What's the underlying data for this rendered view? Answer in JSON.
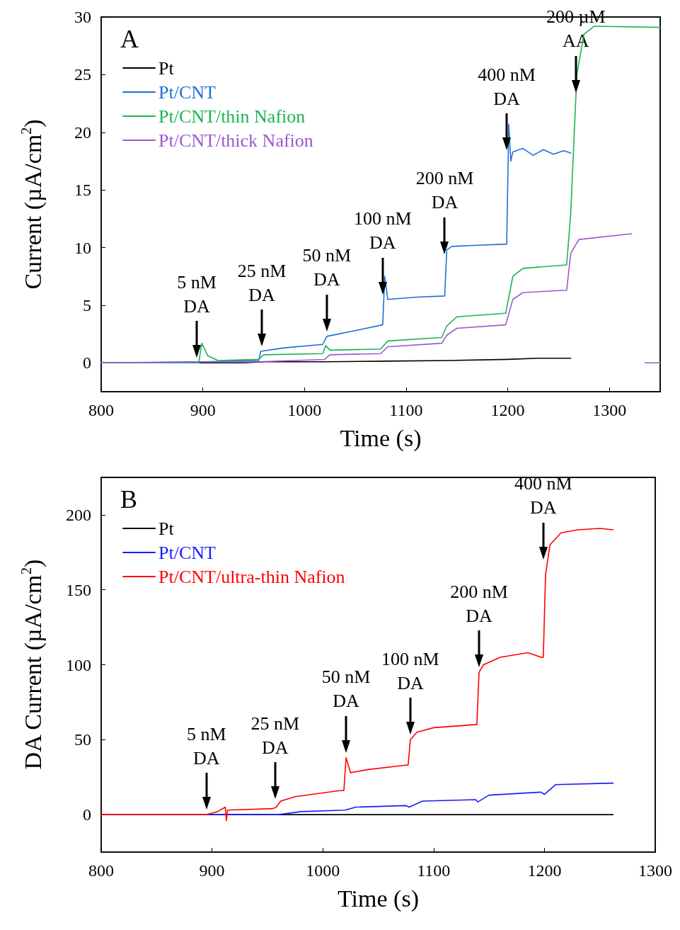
{
  "chart_data": [
    {
      "type": "line",
      "title": "A",
      "xlabel": "Time (s)",
      "ylabel": "Current (µA/cm$^{2}$)",
      "xlim": [
        800,
        1350
      ],
      "xticks": [
        800,
        900,
        1000,
        1100,
        1200,
        1300
      ],
      "ylim": [
        -2.5,
        30
      ],
      "yticks": [
        0,
        5,
        10,
        15,
        20,
        25,
        30
      ],
      "grid": false,
      "legend": "top left",
      "marker": "none",
      "series": [
        {
          "name": "Pt",
          "color": "#000000",
          "x": [
            800,
            900,
            940,
            960,
            1020,
            1080,
            1140,
            1200,
            1230,
            1262
          ],
          "values": [
            0,
            0,
            0,
            0.1,
            0.1,
            0.15,
            0.2,
            0.3,
            0.4,
            0.4
          ]
        },
        {
          "name": "Pt/CNT",
          "color": "#1f6fd6",
          "x": [
            800,
            900,
            955,
            957,
            980,
            1018,
            1022,
            1050,
            1077,
            1079,
            1082,
            1110,
            1138,
            1140,
            1145,
            1170,
            1199,
            1201,
            1203,
            1205,
            1215,
            1225,
            1235,
            1245,
            1255,
            1262
          ],
          "values": [
            0,
            0.1,
            0.2,
            1.0,
            1.3,
            1.6,
            2.3,
            2.8,
            3.3,
            7.5,
            5.5,
            5.7,
            5.8,
            9.8,
            10.1,
            10.2,
            10.3,
            20.7,
            17.5,
            18.3,
            18.6,
            18.0,
            18.5,
            18.1,
            18.4,
            18.2
          ]
        },
        {
          "name": "Pt/CNT/thin Nafion",
          "color": "#1db354",
          "x": [
            800,
            896,
            899,
            905,
            915,
            955,
            960,
            1018,
            1021,
            1025,
            1075,
            1082,
            1135,
            1140,
            1150,
            1198,
            1205,
            1215,
            1258,
            1262,
            1268,
            1275,
            1285,
            1350
          ],
          "values": [
            0,
            0,
            1.7,
            0.6,
            0.2,
            0.3,
            0.7,
            0.8,
            1.5,
            1.1,
            1.2,
            1.9,
            2.2,
            3.2,
            4.0,
            4.3,
            7.5,
            8.2,
            8.5,
            13,
            25,
            28.5,
            29.2,
            29.1
          ]
        },
        {
          "name": "Pt/CNT/thick Nafion",
          "color": "#9b59d0",
          "x": [
            800,
            955,
            1020,
            1025,
            1075,
            1082,
            1135,
            1140,
            1150,
            1198,
            1205,
            1215,
            1258,
            1262,
            1270,
            1322,
            1330,
            1335,
            1350
          ],
          "values": [
            0,
            0.1,
            0.3,
            0.7,
            0.8,
            1.4,
            1.7,
            2.4,
            3.0,
            3.3,
            5.5,
            6.1,
            6.3,
            9.5,
            10.7,
            11.2,
            null,
            0,
            0
          ]
        }
      ],
      "annotations": [
        {
          "text": "5 nM\nDA",
          "x": 894,
          "y": 0
        },
        {
          "text": "25 nM\nDA",
          "x": 958,
          "y": 1.0
        },
        {
          "text": "50 nM\nDA",
          "x": 1022,
          "y": 2.3
        },
        {
          "text": "100 nM\nDA",
          "x": 1077,
          "y": 5.5
        },
        {
          "text": "200 nM\nDA",
          "x": 1138,
          "y": 9
        },
        {
          "text": "400 nM\nDA",
          "x": 1199,
          "y": 18
        },
        {
          "text": "200 µM\nAA",
          "x": 1267,
          "y": 23
        }
      ]
    },
    {
      "type": "line",
      "title": "B",
      "xlabel": "Time (s)",
      "ylabel": "DA Current (µA/cm$^{2}$)",
      "xlim": [
        800,
        1300
      ],
      "xticks": [
        800,
        900,
        1000,
        1100,
        1200,
        1300
      ],
      "ylim": [
        -25,
        225
      ],
      "yticks": [
        0,
        50,
        100,
        150,
        200
      ],
      "grid": false,
      "legend": "top left",
      "marker": "none",
      "series": [
        {
          "name": "Pt",
          "color": "#000000",
          "x": [
            800,
            1000,
            1262
          ],
          "values": [
            0,
            0,
            0
          ]
        },
        {
          "name": "Pt/CNT",
          "color": "#1a1aff",
          "x": [
            800,
            960,
            980,
            1020,
            1030,
            1075,
            1078,
            1090,
            1138,
            1140,
            1150,
            1197,
            1200,
            1210,
            1262
          ],
          "values": [
            0,
            0,
            2,
            3,
            5,
            6,
            5,
            9,
            10,
            8.5,
            13,
            15,
            13.5,
            20,
            21
          ]
        },
        {
          "name": "Pt/CNT/ultra-thin Nafion",
          "color": "#ff0000",
          "x": [
            800,
            895,
            900,
            905,
            912,
            913,
            914,
            955,
            958,
            962,
            975,
            1015,
            1019,
            1021,
            1025,
            1040,
            1075,
            1077,
            1079,
            1085,
            1100,
            1137,
            1139,
            1141,
            1145,
            1160,
            1185,
            1197,
            1199,
            1201,
            1205,
            1215,
            1230,
            1250,
            1262
          ],
          "values": [
            0,
            0,
            1,
            2,
            5,
            -4,
            3,
            4,
            5,
            9,
            12,
            16,
            16,
            38,
            28,
            30,
            33,
            33,
            50,
            55,
            58,
            60,
            60,
            95,
            100,
            105,
            108,
            105,
            105,
            160,
            180,
            188,
            190,
            191,
            190
          ]
        }
      ],
      "annotations": [
        {
          "text": "5 nM\nDA",
          "x": 895,
          "y": 0
        },
        {
          "text": "25 nM\nDA",
          "x": 957,
          "y": 7
        },
        {
          "text": "50 nM\nDA",
          "x": 1021,
          "y": 38
        },
        {
          "text": "100 nM\nDA",
          "x": 1079,
          "y": 50
        },
        {
          "text": "200 nM\nDA",
          "x": 1141,
          "y": 95
        },
        {
          "text": "400 nM\nDA",
          "x": 1199,
          "y": 167
        }
      ]
    }
  ]
}
